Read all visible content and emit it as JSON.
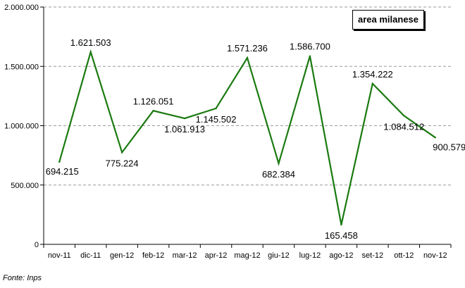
{
  "chart_data": {
    "type": "line",
    "categories": [
      "nov-11",
      "dic-11",
      "gen-12",
      "feb-12",
      "mar-12",
      "apr-12",
      "mag-12",
      "giu-12",
      "lug-12",
      "ago-12",
      "set-12",
      "ott-12",
      "nov-12"
    ],
    "series": [
      {
        "name": "area milanese",
        "values": [
          694215,
          1621503,
          775224,
          1126051,
          1061913,
          1145502,
          1571236,
          682384,
          1586700,
          165458,
          1354222,
          1084512,
          900579
        ],
        "labels": [
          "694.215",
          "1.621.503",
          "775.224",
          "1.126.051",
          "1.061.913",
          "1.145.502",
          "1.571.236",
          "682.384",
          "1.586.700",
          "165.458",
          "1.354.222",
          "1.084.512",
          "900.579"
        ],
        "color": "#1a7a10"
      }
    ],
    "yticks": [
      0,
      500000,
      1000000,
      1500000,
      2000000
    ],
    "ytick_labels": [
      "0",
      "500.000",
      "1.000.000",
      "1.500.000",
      "2.000.000"
    ],
    "ylim": [
      0,
      2000000
    ],
    "grid": "horizontal dashed",
    "legend": "top-right",
    "source": "Fonte: Inps"
  }
}
